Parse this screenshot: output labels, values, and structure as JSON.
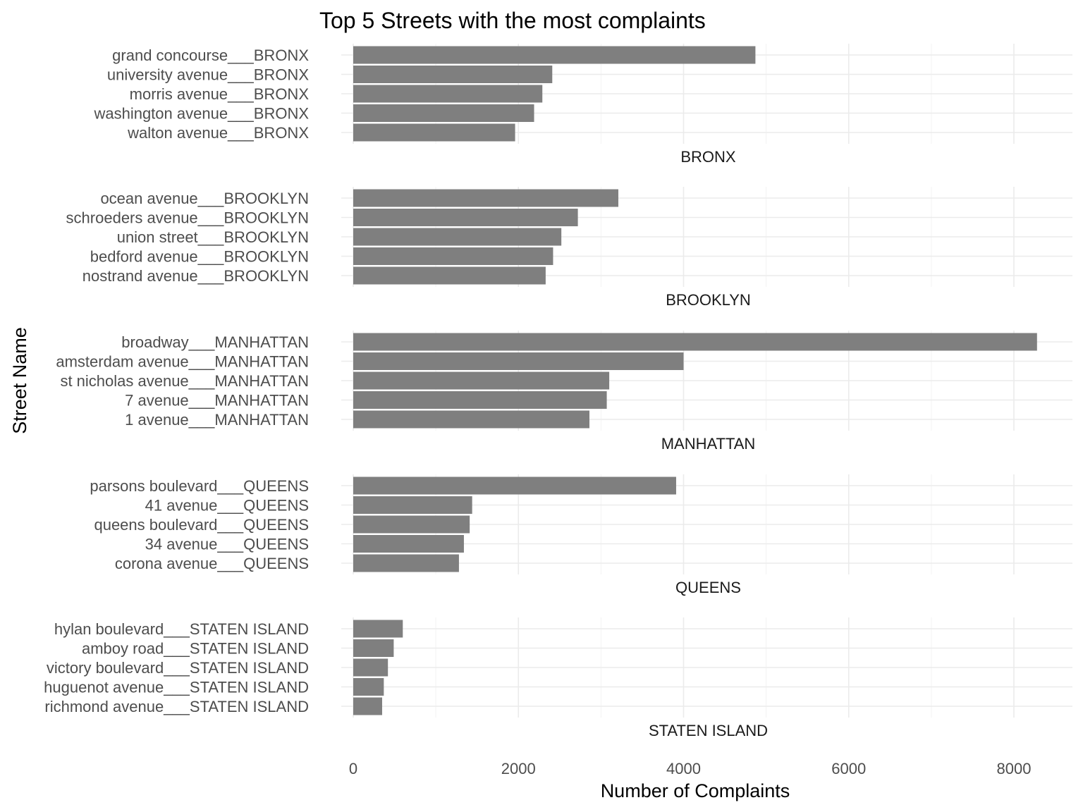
{
  "chart_data": {
    "type": "bar",
    "orientation": "horizontal",
    "title": "Top 5 Streets with the most complaints",
    "xlabel": "Number of Complaints",
    "ylabel": "Street Name",
    "xlim": [
      0,
      8700
    ],
    "x_ticks": [
      0,
      2000,
      4000,
      6000,
      8000
    ],
    "x_tick_labels": [
      "0",
      "2000",
      "4000",
      "6000",
      "8000"
    ],
    "grid": true,
    "bar_color": "#7f7f7f",
    "facets": [
      {
        "name": "BRONX",
        "categories": [
          "grand concourse___BRONX",
          "university avenue___BRONX",
          "morris avenue___BRONX",
          "washington avenue___BRONX",
          "walton avenue___BRONX"
        ],
        "values": [
          4870,
          2410,
          2290,
          2190,
          1960
        ]
      },
      {
        "name": "BROOKLYN",
        "categories": [
          "ocean avenue___BROOKLYN",
          "schroeders avenue___BROOKLYN",
          "union street___BROOKLYN",
          "bedford avenue___BROOKLYN",
          "nostrand avenue___BROOKLYN"
        ],
        "values": [
          3210,
          2720,
          2520,
          2420,
          2330
        ]
      },
      {
        "name": "MANHATTAN",
        "categories": [
          "broadway___MANHATTAN",
          "amsterdam avenue___MANHATTAN",
          "st nicholas avenue___MANHATTAN",
          "7 avenue___MANHATTAN",
          "1 avenue___MANHATTAN"
        ],
        "values": [
          8280,
          4000,
          3100,
          3070,
          2860
        ]
      },
      {
        "name": "QUEENS",
        "categories": [
          "parsons boulevard___QUEENS",
          "41 avenue___QUEENS",
          "queens boulevard___QUEENS",
          "34 avenue___QUEENS",
          "corona avenue___QUEENS"
        ],
        "values": [
          3910,
          1440,
          1410,
          1340,
          1280
        ]
      },
      {
        "name": "STATEN ISLAND",
        "categories": [
          "hylan boulevard___STATEN ISLAND",
          "amboy road___STATEN ISLAND",
          "victory boulevard___STATEN ISLAND",
          "huguenot avenue___STATEN ISLAND",
          "richmond avenue___STATEN ISLAND"
        ],
        "values": [
          600,
          490,
          420,
          370,
          350
        ]
      }
    ]
  }
}
